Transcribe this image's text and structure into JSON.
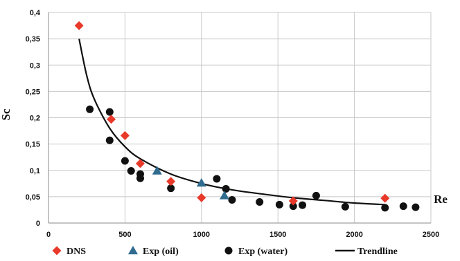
{
  "chart_data": {
    "type": "scatter",
    "title": "",
    "xlabel": "Re",
    "ylabel": "Sc",
    "xlim": [
      0,
      2500
    ],
    "ylim": [
      0,
      0.4
    ],
    "x_ticks": [
      0,
      500,
      1000,
      1500,
      2000,
      2500
    ],
    "y_ticks": [
      0,
      0.05,
      0.1,
      0.15,
      0.2,
      0.25,
      0.3,
      0.35,
      0.4
    ],
    "x_tick_labels": [
      "0",
      "500",
      "1000",
      "1500",
      "2000",
      "2500"
    ],
    "y_tick_labels": [
      "0",
      "0,05",
      "0,1",
      "0,15",
      "0,2",
      "0,25",
      "0,3",
      "0,35",
      "0,4"
    ],
    "grid": true,
    "legend_position": "bottom",
    "series": [
      {
        "name": "DNS",
        "marker": "diamond",
        "color": "#e8392a",
        "points": [
          {
            "x": 200,
            "y": 0.375
          },
          {
            "x": 410,
            "y": 0.197
          },
          {
            "x": 500,
            "y": 0.166
          },
          {
            "x": 600,
            "y": 0.113
          },
          {
            "x": 800,
            "y": 0.079
          },
          {
            "x": 1000,
            "y": 0.048
          },
          {
            "x": 1600,
            "y": 0.042
          },
          {
            "x": 2200,
            "y": 0.047
          }
        ]
      },
      {
        "name": "Exp (oil)",
        "marker": "triangle",
        "color": "#2f6c8f",
        "points": [
          {
            "x": 710,
            "y": 0.099
          },
          {
            "x": 1000,
            "y": 0.076
          },
          {
            "x": 1150,
            "y": 0.052
          }
        ]
      },
      {
        "name": "Exp (water)",
        "marker": "circle",
        "color": "#111111",
        "points": [
          {
            "x": 270,
            "y": 0.216
          },
          {
            "x": 400,
            "y": 0.211
          },
          {
            "x": 400,
            "y": 0.157
          },
          {
            "x": 500,
            "y": 0.118
          },
          {
            "x": 540,
            "y": 0.099
          },
          {
            "x": 600,
            "y": 0.093
          },
          {
            "x": 600,
            "y": 0.085
          },
          {
            "x": 800,
            "y": 0.066
          },
          {
            "x": 1100,
            "y": 0.084
          },
          {
            "x": 1160,
            "y": 0.065
          },
          {
            "x": 1200,
            "y": 0.044
          },
          {
            "x": 1380,
            "y": 0.04
          },
          {
            "x": 1510,
            "y": 0.035
          },
          {
            "x": 1600,
            "y": 0.032
          },
          {
            "x": 1660,
            "y": 0.034
          },
          {
            "x": 1750,
            "y": 0.052
          },
          {
            "x": 1940,
            "y": 0.031
          },
          {
            "x": 2200,
            "y": 0.029
          },
          {
            "x": 2320,
            "y": 0.032
          },
          {
            "x": 2400,
            "y": 0.03
          }
        ]
      }
    ],
    "trendline": {
      "name": "Trendline",
      "color": "#111111",
      "points": [
        {
          "x": 200,
          "y": 0.35
        },
        {
          "x": 250,
          "y": 0.28
        },
        {
          "x": 300,
          "y": 0.235
        },
        {
          "x": 400,
          "y": 0.18
        },
        {
          "x": 500,
          "y": 0.145
        },
        {
          "x": 600,
          "y": 0.122
        },
        {
          "x": 800,
          "y": 0.093
        },
        {
          "x": 1000,
          "y": 0.075
        },
        {
          "x": 1200,
          "y": 0.063
        },
        {
          "x": 1400,
          "y": 0.055
        },
        {
          "x": 1600,
          "y": 0.048
        },
        {
          "x": 1800,
          "y": 0.043
        },
        {
          "x": 2000,
          "y": 0.038
        },
        {
          "x": 2200,
          "y": 0.035
        }
      ]
    },
    "legend": [
      "DNS",
      "Exp (oil)",
      "Exp (water)",
      "Trendline"
    ]
  }
}
